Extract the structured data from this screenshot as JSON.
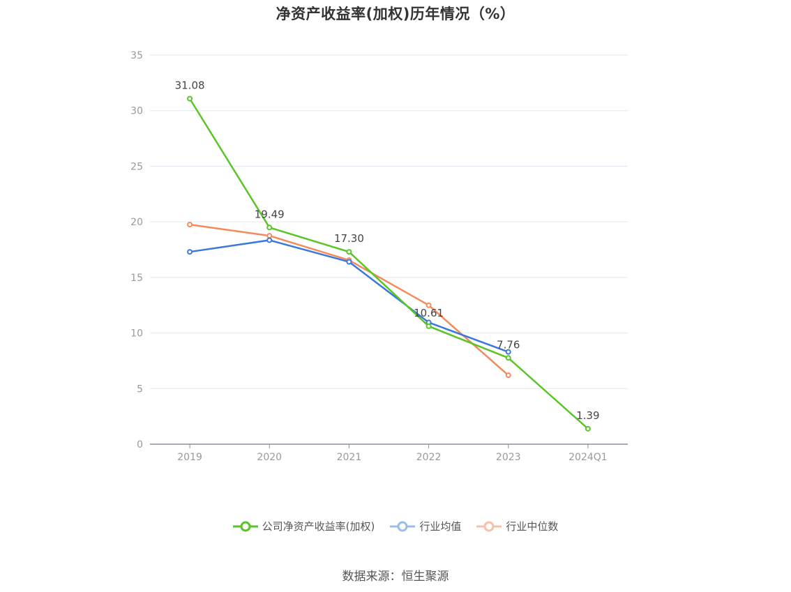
{
  "title": "净资产收益率(加权)历年情况（%）",
  "source_text": "数据来源：恒生聚源",
  "chart_data": {
    "type": "line",
    "title": "净资产收益率(加权)历年情况（%）",
    "categories": [
      "2019",
      "2020",
      "2021",
      "2022",
      "2023",
      "2024Q1"
    ],
    "ylim": [
      0,
      35
    ],
    "yticks": [
      0,
      5,
      10,
      15,
      20,
      25,
      30,
      35
    ],
    "grid": true,
    "legend_position": "bottom",
    "series": [
      {
        "name": "公司净资产收益率(加权)",
        "color": "#5ac426",
        "values": [
          31.08,
          19.49,
          17.3,
          10.61,
          7.76,
          1.39
        ],
        "labels": [
          "31.08",
          "19.49",
          "17.30",
          "10.61",
          "7.76",
          "1.39"
        ]
      },
      {
        "name": "行业均值",
        "color": "#3a78dc",
        "values": [
          17.3,
          18.35,
          16.4,
          10.95,
          8.3,
          null
        ]
      },
      {
        "name": "行业中位数",
        "color": "#f38a5c",
        "values": [
          19.75,
          18.75,
          16.55,
          12.5,
          6.2,
          null
        ]
      }
    ]
  }
}
